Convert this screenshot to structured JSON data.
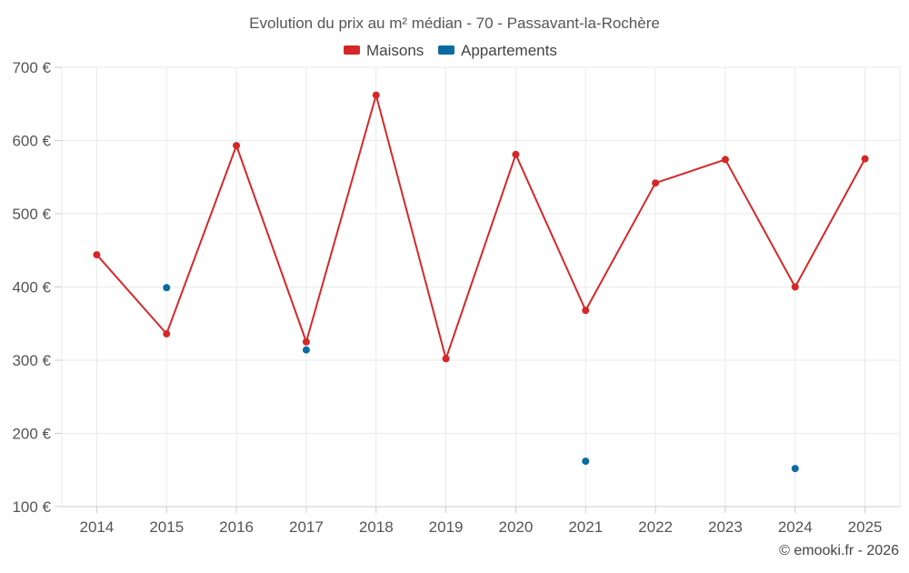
{
  "chart_data": {
    "type": "line",
    "title": "Evolution du prix au m² médian - 70 - Passavant-la-Rochère",
    "categories": [
      "2014",
      "2015",
      "2016",
      "2017",
      "2018",
      "2019",
      "2020",
      "2021",
      "2022",
      "2023",
      "2024",
      "2025"
    ],
    "series": [
      {
        "name": "Maisons",
        "color": "#d62728",
        "style": "line",
        "values": [
          444,
          336,
          593,
          325,
          662,
          302,
          581,
          368,
          542,
          574,
          400,
          575
        ]
      },
      {
        "name": "Appartements",
        "color": "#0b6aa2",
        "style": "points",
        "values": [
          null,
          399,
          null,
          314,
          null,
          null,
          null,
          162,
          null,
          null,
          152,
          null
        ]
      }
    ],
    "y_ticks": [
      100,
      200,
      300,
      400,
      500,
      600,
      700
    ],
    "y_tick_labels": [
      "100 €",
      "200 €",
      "300 €",
      "400 €",
      "500 €",
      "600 €",
      "700 €"
    ],
    "ylim": [
      100,
      700
    ],
    "grid": true,
    "legend_position": "top-center",
    "xlabel": "",
    "ylabel": ""
  },
  "credit": "© emooki.fr - 2026"
}
